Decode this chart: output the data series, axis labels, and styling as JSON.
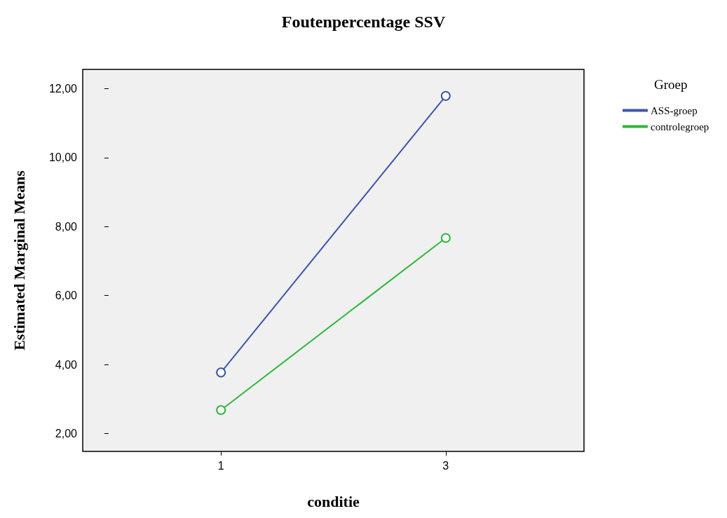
{
  "chart_data": {
    "type": "line",
    "title": "Foutenpercentage SSV",
    "xlabel": "conditie",
    "ylabel": "Estimated Marginal Means",
    "legend_title": "Groep",
    "x": [
      1,
      3
    ],
    "series": [
      {
        "name": "ASS-groep",
        "color": "#3f56a8",
        "values": [
          3.77,
          11.79
        ]
      },
      {
        "name": "controlegroep",
        "color": "#2db83d",
        "values": [
          2.68,
          7.67
        ]
      }
    ],
    "xlim": [
      -0.23,
      4.23
    ],
    "xticks": [
      1,
      3
    ],
    "ylim": [
      1.48,
      12.56
    ],
    "yticks": [
      {
        "value": 2,
        "label": "2,00"
      },
      {
        "value": 4,
        "label": "4,00"
      },
      {
        "value": 6,
        "label": "6,00"
      },
      {
        "value": 8,
        "label": "8,00"
      },
      {
        "value": 10,
        "label": "10,00"
      },
      {
        "value": 12,
        "label": "12,00"
      }
    ],
    "grid": false,
    "legend": "top right",
    "marker": "circle",
    "line_style": "solid"
  }
}
